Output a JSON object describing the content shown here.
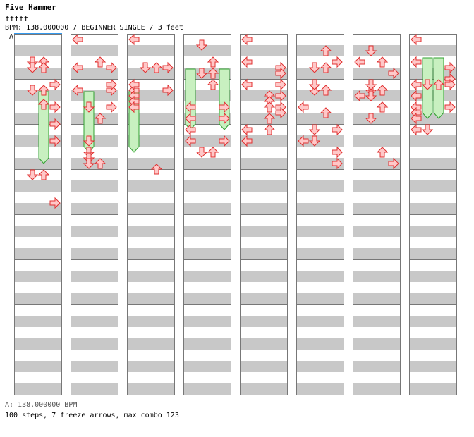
{
  "song": {
    "title": "Five Hammer",
    "artist": "fffff",
    "info": "BPM: 138.000000 / BEGINNER SINGLE / 3 feet"
  },
  "chart": {
    "section_marker": "A",
    "columns": 8,
    "measures_per_column": 8,
    "lanes": [
      "left",
      "down",
      "up",
      "right"
    ],
    "notes": [
      [
        0,
        0,
        8,
        "up"
      ],
      [
        0,
        1,
        4,
        "down"
      ],
      [
        0,
        2,
        2,
        "down"
      ],
      [
        0,
        2,
        2,
        "up"
      ],
      [
        0,
        3,
        6,
        "down"
      ],
      [
        0,
        3,
        6,
        "up"
      ],
      [
        0,
        4,
        0,
        "right"
      ],
      [
        0,
        5,
        3,
        "up"
      ],
      [
        0,
        6,
        0,
        "right"
      ],
      [
        0,
        7,
        2,
        "right"
      ],
      [
        0,
        8,
        4,
        "right"
      ],
      [
        0,
        11,
        14,
        "right"
      ],
      [
        0,
        12,
        0,
        "down"
      ],
      [
        0,
        12,
        0,
        "up"
      ],
      [
        1,
        0,
        0,
        "left"
      ],
      [
        1,
        1,
        4,
        "up"
      ],
      [
        1,
        2,
        2,
        "left"
      ],
      [
        1,
        2,
        2,
        "right"
      ],
      [
        1,
        3,
        6,
        "left"
      ],
      [
        1,
        3,
        6,
        "right"
      ],
      [
        1,
        4,
        0,
        "right"
      ],
      [
        1,
        5,
        4,
        "down"
      ],
      [
        1,
        6,
        0,
        "right"
      ],
      [
        1,
        7,
        0,
        "up"
      ],
      [
        1,
        8,
        4,
        "down"
      ],
      [
        1,
        10,
        0,
        "down"
      ],
      [
        1,
        10,
        2,
        "down"
      ],
      [
        1,
        10,
        4,
        "down"
      ],
      [
        1,
        11,
        0,
        "down"
      ],
      [
        1,
        11,
        0,
        "up"
      ],
      [
        2,
        0,
        0,
        "left"
      ],
      [
        2,
        1,
        6,
        "right"
      ],
      [
        2,
        2,
        2,
        "down"
      ],
      [
        2,
        2,
        2,
        "up"
      ],
      [
        2,
        3,
        6,
        "left"
      ],
      [
        2,
        3,
        6,
        "right"
      ],
      [
        2,
        4,
        0,
        "left"
      ],
      [
        2,
        4,
        6,
        "left"
      ],
      [
        2,
        5,
        0,
        "left"
      ],
      [
        2,
        5,
        2,
        "left"
      ],
      [
        2,
        5,
        4,
        "left"
      ],
      [
        2,
        6,
        0,
        "left"
      ],
      [
        2,
        11,
        2,
        "up"
      ],
      [
        3,
        0,
        2,
        "down"
      ],
      [
        3,
        1,
        4,
        "up"
      ],
      [
        3,
        2,
        4,
        "down"
      ],
      [
        3,
        2,
        4,
        "up"
      ],
      [
        3,
        4,
        0,
        "up"
      ],
      [
        3,
        6,
        0,
        "left"
      ],
      [
        3,
        6,
        0,
        "right"
      ],
      [
        3,
        7,
        0,
        "left"
      ],
      [
        3,
        7,
        0,
        "right"
      ],
      [
        3,
        8,
        0,
        "left"
      ],
      [
        3,
        8,
        4,
        "left"
      ],
      [
        3,
        9,
        0,
        "left"
      ],
      [
        3,
        9,
        0,
        "right"
      ],
      [
        3,
        10,
        0,
        "down"
      ],
      [
        3,
        10,
        0,
        "up"
      ],
      [
        4,
        0,
        0,
        "left"
      ],
      [
        4,
        1,
        6,
        "right"
      ],
      [
        4,
        2,
        0,
        "left"
      ],
      [
        4,
        2,
        4,
        "right"
      ],
      [
        4,
        3,
        4,
        "left"
      ],
      [
        4,
        3,
        4,
        "right"
      ],
      [
        4,
        4,
        0,
        "left"
      ],
      [
        4,
        4,
        4,
        "right"
      ],
      [
        4,
        5,
        0,
        "up"
      ],
      [
        4,
        5,
        2,
        "up"
      ],
      [
        4,
        5,
        4,
        "up"
      ],
      [
        4,
        6,
        0,
        "right"
      ],
      [
        4,
        6,
        2,
        "right"
      ],
      [
        4,
        7,
        0,
        "up"
      ],
      [
        4,
        7,
        4,
        "up"
      ],
      [
        4,
        8,
        0,
        "left"
      ],
      [
        4,
        9,
        0,
        "left"
      ],
      [
        5,
        0,
        4,
        "up"
      ],
      [
        5,
        1,
        4,
        "right"
      ],
      [
        5,
        2,
        2,
        "down"
      ],
      [
        5,
        2,
        2,
        "up"
      ],
      [
        5,
        3,
        6,
        "down"
      ],
      [
        5,
        3,
        6,
        "up"
      ],
      [
        5,
        4,
        0,
        "down"
      ],
      [
        5,
        5,
        6,
        "up"
      ],
      [
        5,
        6,
        0,
        "left"
      ],
      [
        5,
        7,
        4,
        "right"
      ],
      [
        5,
        8,
        0,
        "down"
      ],
      [
        5,
        8,
        4,
        "down"
      ],
      [
        5,
        9,
        0,
        "left"
      ],
      [
        5,
        9,
        4,
        "right"
      ],
      [
        5,
        10,
        0,
        "right"
      ],
      [
        5,
        11,
        0,
        "right"
      ],
      [
        6,
        0,
        4,
        "down"
      ],
      [
        6,
        1,
        4,
        "up"
      ],
      [
        6,
        2,
        0,
        "left"
      ],
      [
        6,
        2,
        4,
        "right"
      ],
      [
        6,
        3,
        6,
        "down"
      ],
      [
        6,
        3,
        6,
        "up"
      ],
      [
        6,
        4,
        0,
        "down"
      ],
      [
        6,
        4,
        4,
        "down"
      ],
      [
        6,
        5,
        0,
        "left"
      ],
      [
        6,
        5,
        4,
        "up"
      ],
      [
        6,
        6,
        0,
        "up"
      ],
      [
        6,
        7,
        0,
        "down"
      ],
      [
        6,
        10,
        0,
        "up"
      ],
      [
        6,
        11,
        0,
        "right"
      ],
      [
        7,
        0,
        0,
        "left"
      ],
      [
        7,
        1,
        6,
        "right"
      ],
      [
        7,
        2,
        0,
        "left"
      ],
      [
        7,
        2,
        6,
        "right"
      ],
      [
        7,
        3,
        4,
        "left"
      ],
      [
        7,
        3,
        4,
        "right"
      ],
      [
        7,
        4,
        0,
        "down"
      ],
      [
        7,
        4,
        0,
        "up"
      ],
      [
        7,
        5,
        0,
        "left"
      ],
      [
        7,
        5,
        4,
        "right"
      ],
      [
        7,
        6,
        0,
        "left"
      ],
      [
        7,
        6,
        2,
        "left"
      ],
      [
        7,
        6,
        4,
        "left"
      ],
      [
        7,
        7,
        4,
        "down"
      ],
      [
        7,
        7,
        4,
        "left"
      ]
    ],
    "freezes": [
      [
        0,
        5,
        0,
        "up",
        6
      ],
      [
        1,
        5,
        0,
        "down",
        5
      ],
      [
        2,
        5,
        0,
        "left",
        5
      ],
      [
        3,
        3,
        0,
        "left",
        5
      ],
      [
        3,
        3,
        0,
        "right",
        5
      ],
      [
        7,
        2,
        0,
        "down",
        5
      ],
      [
        7,
        2,
        0,
        "up",
        5
      ]
    ]
  },
  "footer": {
    "bpm_line": "A: 138.000000 BPM",
    "stats_line": "100 steps, 7 freeze arrows, max combo 123"
  },
  "colors": {
    "arrow_fill": "#ffc8c8",
    "arrow_stroke": "#e03030",
    "freeze_fill": "#c8f0c0",
    "freeze_stroke": "#30a030",
    "stripe": "#c8c8c8"
  }
}
